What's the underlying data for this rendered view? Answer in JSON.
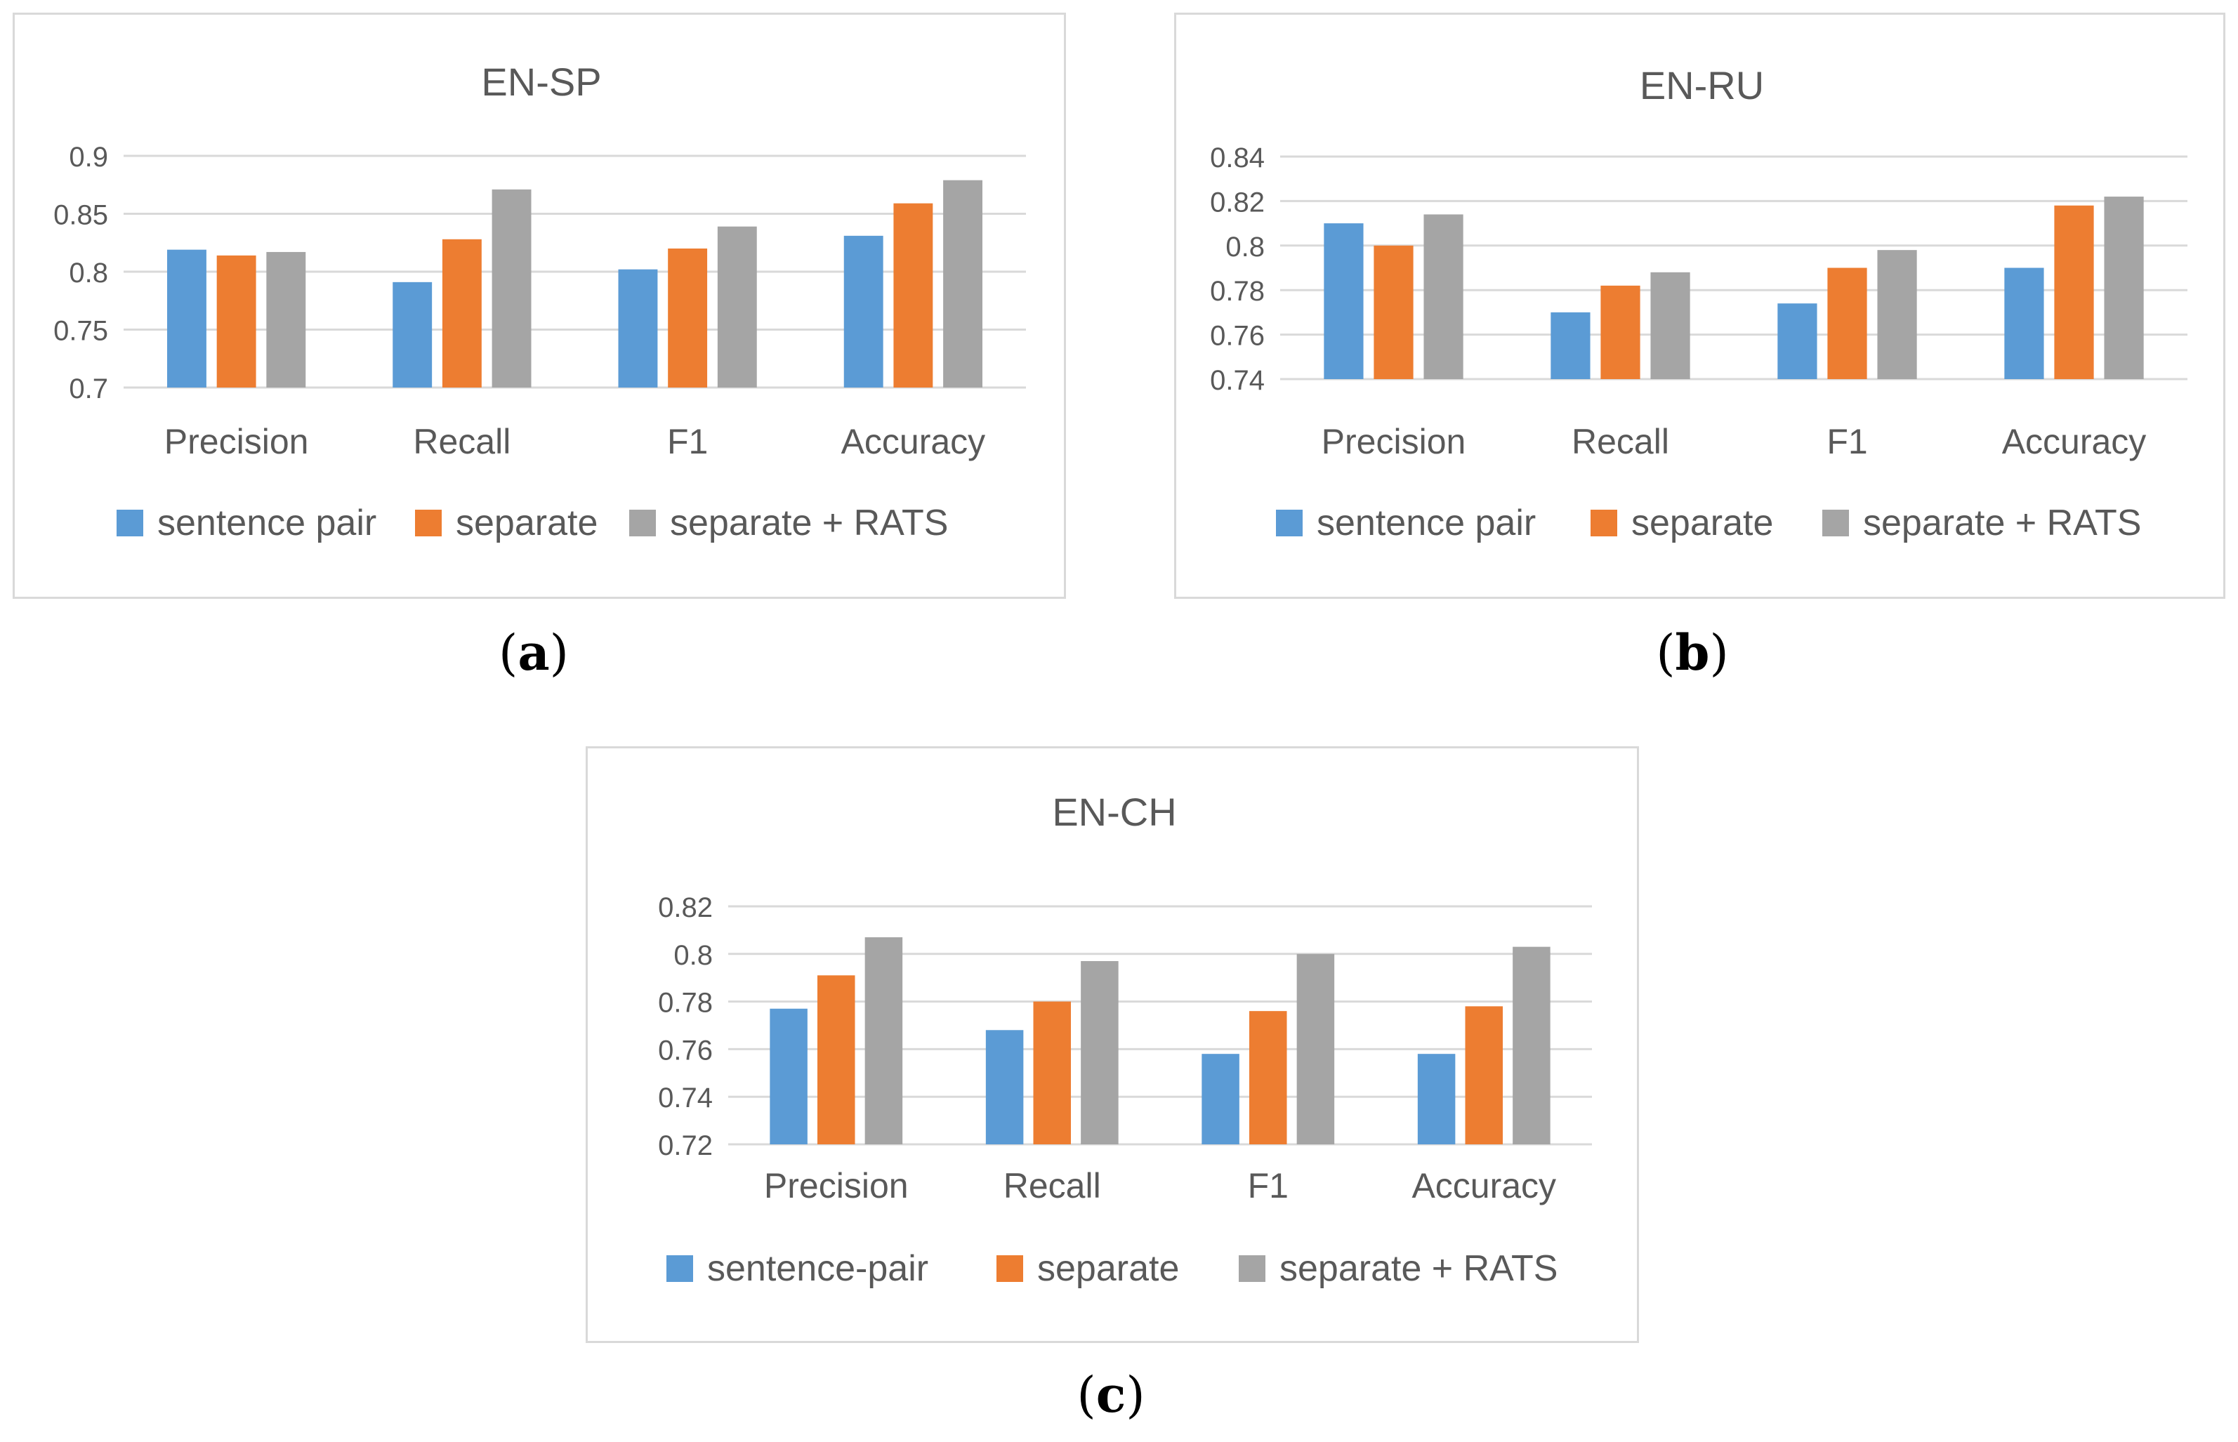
{
  "figures": [
    {
      "caption_label": "a",
      "chart_data": {
        "type": "bar",
        "title": "EN-SP",
        "categories": [
          "Precision",
          "Recall",
          "F1",
          "Accuracy"
        ],
        "ylim": [
          0.7,
          0.9
        ],
        "yticks": [
          0.7,
          0.75,
          0.8,
          0.85,
          0.9
        ],
        "ytick_labels": [
          "0.7",
          "0.75",
          "0.8",
          "0.85",
          "0.9"
        ],
        "grid": true,
        "legend_position": "bottom",
        "series": [
          {
            "name": "sentence pair",
            "color": "#5b9bd5",
            "values": [
              0.819,
              0.791,
              0.802,
              0.831
            ]
          },
          {
            "name": "separate",
            "color": "#ed7d31",
            "values": [
              0.814,
              0.828,
              0.82,
              0.859
            ]
          },
          {
            "name": "separate + RATS",
            "color": "#a5a5a5",
            "values": [
              0.817,
              0.871,
              0.839,
              0.879
            ]
          }
        ]
      }
    },
    {
      "caption_label": "b",
      "chart_data": {
        "type": "bar",
        "title": "EN-RU",
        "categories": [
          "Precision",
          "Recall",
          "F1",
          "Accuracy"
        ],
        "ylim": [
          0.74,
          0.84
        ],
        "yticks": [
          0.74,
          0.76,
          0.78,
          0.8,
          0.82,
          0.84
        ],
        "ytick_labels": [
          "0.74",
          "0.76",
          "0.78",
          "0.8",
          "0.82",
          "0.84"
        ],
        "grid": true,
        "legend_position": "bottom",
        "series": [
          {
            "name": "sentence pair",
            "color": "#5b9bd5",
            "values": [
              0.81,
              0.77,
              0.774,
              0.79
            ]
          },
          {
            "name": "separate",
            "color": "#ed7d31",
            "values": [
              0.8,
              0.782,
              0.79,
              0.818
            ]
          },
          {
            "name": "separate + RATS",
            "color": "#a5a5a5",
            "values": [
              0.814,
              0.788,
              0.798,
              0.822
            ]
          }
        ]
      }
    },
    {
      "caption_label": "c",
      "chart_data": {
        "type": "bar",
        "title": "EN-CH",
        "categories": [
          "Precision",
          "Recall",
          "F1",
          "Accuracy"
        ],
        "ylim": [
          0.72,
          0.82
        ],
        "yticks": [
          0.72,
          0.74,
          0.76,
          0.78,
          0.8,
          0.82
        ],
        "ytick_labels": [
          "0.72",
          "0.74",
          "0.76",
          "0.78",
          "0.8",
          "0.82"
        ],
        "grid": true,
        "legend_position": "bottom",
        "series": [
          {
            "name": "sentence-pair",
            "color": "#5b9bd5",
            "values": [
              0.777,
              0.768,
              0.758,
              0.758
            ]
          },
          {
            "name": "separate",
            "color": "#ed7d31",
            "values": [
              0.791,
              0.78,
              0.776,
              0.778
            ]
          },
          {
            "name": "separate + RATS",
            "color": "#a5a5a5",
            "values": [
              0.807,
              0.797,
              0.8,
              0.803
            ]
          }
        ]
      }
    }
  ]
}
